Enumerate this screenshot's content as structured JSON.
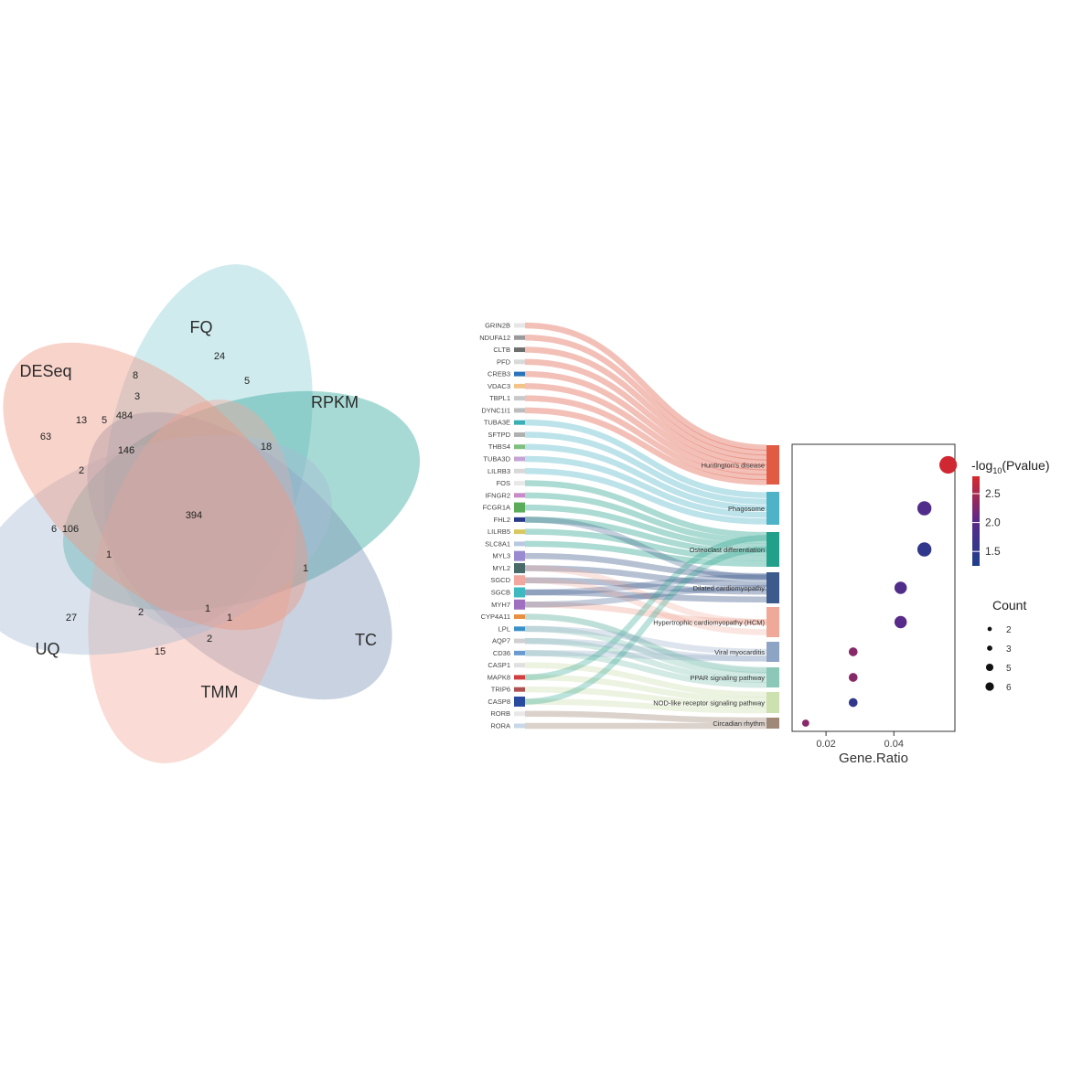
{
  "chart_data": [
    {
      "type": "venn",
      "sets": [
        {
          "name": "FQ",
          "color": "#8fcfd6"
        },
        {
          "name": "RPKM",
          "color": "#2fa79c"
        },
        {
          "name": "TC",
          "color": "#7e93b8"
        },
        {
          "name": "TMM",
          "color": "#f2a99a"
        },
        {
          "name": "UQ",
          "color": "#a8bcd4"
        },
        {
          "name": "DESeq",
          "color": "#ee9580"
        }
      ],
      "counts": [
        "24",
        "5",
        "8",
        "3",
        "484",
        "13",
        "5",
        "63",
        "146",
        "18",
        "2",
        "394",
        "6",
        "106",
        "1",
        "1",
        "27",
        "2",
        "1",
        "1",
        "2",
        "15"
      ]
    },
    {
      "type": "sankey",
      "genes": [
        {
          "name": "GRIN2B",
          "color": "#e6e6e6"
        },
        {
          "name": "NDUFA12",
          "color": "#9a9a9a"
        },
        {
          "name": "CLTB",
          "color": "#6e6e6e"
        },
        {
          "name": "PFD",
          "color": "#d9d9d9"
        },
        {
          "name": "CREB3",
          "color": "#2a73b8"
        },
        {
          "name": "VDAC3",
          "color": "#f2c48a"
        },
        {
          "name": "TBPL1",
          "color": "#c9c9c9"
        },
        {
          "name": "DYNC1I1",
          "color": "#bdbdbd"
        },
        {
          "name": "TUBA3E",
          "color": "#3ab0b4"
        },
        {
          "name": "SFTPD",
          "color": "#b0b0b0"
        },
        {
          "name": "THBS4",
          "color": "#7fbf7f"
        },
        {
          "name": "TUBA3D",
          "color": "#c4a4d4"
        },
        {
          "name": "LILRB3",
          "color": "#d8d8d8"
        },
        {
          "name": "FOS",
          "color": "#e8e8e8"
        },
        {
          "name": "IFNGR2",
          "color": "#c88ac8"
        },
        {
          "name": "FCGR1A",
          "color": "#5aac5a"
        },
        {
          "name": "FHL2",
          "color": "#2a3a8a"
        },
        {
          "name": "LILRB5",
          "color": "#d8c860"
        },
        {
          "name": "SLC8A1",
          "color": "#b8c8e0"
        },
        {
          "name": "MYL3",
          "color": "#9a8ad0"
        },
        {
          "name": "MYL2",
          "color": "#4a6a6a"
        },
        {
          "name": "SGCD",
          "color": "#f0a8a0"
        },
        {
          "name": "SGCB",
          "color": "#40b8c0"
        },
        {
          "name": "MYH7",
          "color": "#a070c0"
        },
        {
          "name": "CYP4A11",
          "color": "#e89040"
        },
        {
          "name": "LPL",
          "color": "#3a90c8"
        },
        {
          "name": "AQP7",
          "color": "#d0d0d0"
        },
        {
          "name": "CD36",
          "color": "#6a9ad0"
        },
        {
          "name": "CASP1",
          "color": "#e0e0e0"
        },
        {
          "name": "MAPK8",
          "color": "#d04040"
        },
        {
          "name": "TRIP6",
          "color": "#b05050"
        },
        {
          "name": "CASP8",
          "color": "#2a4aa0"
        },
        {
          "name": "RORB",
          "color": "#e8e8e8"
        },
        {
          "name": "RORA",
          "color": "#c8d8e8"
        }
      ],
      "pathways": [
        {
          "name": "Huntington's disease",
          "color": "#e05a44"
        },
        {
          "name": "Phagosome",
          "color": "#4fb3c8"
        },
        {
          "name": "Osteoclast differentiation",
          "color": "#22a08a"
        },
        {
          "name": "Dilated cardiomyopathy",
          "color": "#3c5a8c"
        },
        {
          "name": "Hypertrophic cardiomyopathy (HCM)",
          "color": "#f0a898"
        },
        {
          "name": "Viral myocarditis",
          "color": "#8ea4c4"
        },
        {
          "name": "PPAR signaling pathway",
          "color": "#8cc8b8"
        },
        {
          "name": "NOD-like receptor signaling pathway",
          "color": "#cce0b0"
        },
        {
          "name": "Circadian rhythm",
          "color": "#a08878"
        }
      ]
    },
    {
      "type": "scatter",
      "xlabel": "Gene.Ratio",
      "xlim": [
        0.01,
        0.058
      ],
      "xticks": [
        "0.02",
        "0.04"
      ],
      "xtick_values": [
        0.02,
        0.04
      ],
      "points": [
        {
          "pathway": "Huntington's disease",
          "gene_ratio": 0.056,
          "count": 8,
          "neg_log10_p": 2.75
        },
        {
          "pathway": "Phagosome",
          "gene_ratio": 0.049,
          "count": 6,
          "neg_log10_p": 1.9
        },
        {
          "pathway": "Osteoclast differentiation",
          "gene_ratio": 0.049,
          "count": 6,
          "neg_log10_p": 1.5
        },
        {
          "pathway": "Dilated cardiomyopathy",
          "gene_ratio": 0.042,
          "count": 5,
          "neg_log10_p": 1.9
        },
        {
          "pathway": "Hypertrophic cardiomyopathy (HCM)",
          "gene_ratio": 0.042,
          "count": 5,
          "neg_log10_p": 2.0
        },
        {
          "pathway": "Viral myocarditis",
          "gene_ratio": 0.028,
          "count": 3,
          "neg_log10_p": 2.3
        },
        {
          "pathway": "PPAR signaling pathway",
          "gene_ratio": 0.028,
          "count": 3,
          "neg_log10_p": 2.3
        },
        {
          "pathway": "NOD-like receptor signaling pathway",
          "gene_ratio": 0.028,
          "count": 3,
          "neg_log10_p": 1.5
        },
        {
          "pathway": "Circadian rhythm",
          "gene_ratio": 0.014,
          "count": 2,
          "neg_log10_p": 2.3
        }
      ],
      "color_legend": {
        "title_prefix": "-log",
        "title_sub": "10",
        "title_suffix": "(Pvalue)",
        "ticks": [
          "2.5",
          "2.0",
          "1.5"
        ],
        "tick_values": [
          2.5,
          2.0,
          1.5
        ],
        "range": [
          1.25,
          2.8
        ],
        "low_color": "#1e3f8c",
        "mid_color": "#5a2a8a",
        "high_color": "#d8282c"
      },
      "size_legend": {
        "title": "Count",
        "labels": [
          "2",
          "3",
          "5",
          "6"
        ]
      }
    }
  ]
}
